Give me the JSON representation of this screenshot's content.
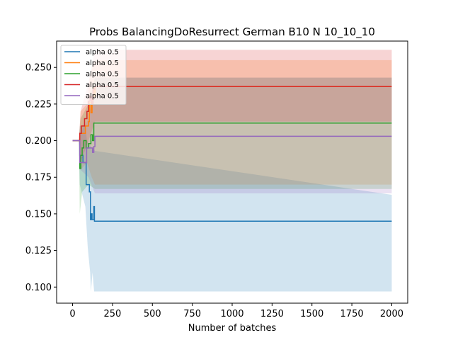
{
  "chart_data": {
    "type": "line",
    "title": "Probs BalancingDoResurrect German B10 N 10_10_10",
    "xlabel": "Number of batches",
    "ylabel": "",
    "xlim": [
      -100,
      2100
    ],
    "ylim": [
      0.089,
      0.268
    ],
    "xticks": [
      0,
      250,
      500,
      750,
      1000,
      1250,
      1500,
      1750,
      2000
    ],
    "yticks": [
      0.1,
      0.125,
      0.15,
      0.175,
      0.2,
      0.225,
      0.25
    ],
    "grid": false,
    "legend_position": "top-left",
    "series": [
      {
        "name": "alpha 0.5",
        "color": "#1f77b4",
        "points": [
          [
            0,
            0.2
          ],
          [
            40,
            0.2
          ],
          [
            45,
            0.19
          ],
          [
            60,
            0.19
          ],
          [
            65,
            0.185
          ],
          [
            80,
            0.185
          ],
          [
            85,
            0.17
          ],
          [
            100,
            0.17
          ],
          [
            105,
            0.165
          ],
          [
            112,
            0.146
          ],
          [
            118,
            0.15
          ],
          [
            122,
            0.146
          ],
          [
            128,
            0.146
          ],
          [
            133,
            0.155
          ],
          [
            137,
            0.145
          ],
          [
            2000,
            0.145
          ]
        ],
        "band_upper": [
          [
            0,
            0.2
          ],
          [
            40,
            0.2
          ],
          [
            45,
            0.21
          ],
          [
            80,
            0.21
          ],
          [
            90,
            0.2
          ],
          [
            120,
            0.195
          ],
          [
            140,
            0.193
          ],
          [
            2000,
            0.163
          ]
        ],
        "band_lower": [
          [
            0,
            0.2
          ],
          [
            40,
            0.2
          ],
          [
            45,
            0.17
          ],
          [
            80,
            0.155
          ],
          [
            95,
            0.127
          ],
          [
            110,
            0.11
          ],
          [
            115,
            0.097
          ],
          [
            125,
            0.11
          ],
          [
            135,
            0.097
          ],
          [
            2000,
            0.097
          ]
        ]
      },
      {
        "name": "alpha 0.5",
        "color": "#ff7f0e",
        "points": [
          [
            0,
            0.2
          ],
          [
            40,
            0.2
          ],
          [
            45,
            0.205
          ],
          [
            70,
            0.205
          ],
          [
            80,
            0.21
          ],
          [
            100,
            0.213
          ],
          [
            105,
            0.226
          ],
          [
            115,
            0.219
          ],
          [
            122,
            0.228
          ],
          [
            130,
            0.236
          ],
          [
            137,
            0.23
          ],
          [
            143,
            0.237
          ],
          [
            2000,
            0.237
          ]
        ],
        "band_upper": [
          [
            0,
            0.2
          ],
          [
            40,
            0.2
          ],
          [
            50,
            0.22
          ],
          [
            90,
            0.225
          ],
          [
            110,
            0.245
          ],
          [
            140,
            0.255
          ],
          [
            2000,
            0.255
          ]
        ],
        "band_lower": [
          [
            0,
            0.2
          ],
          [
            40,
            0.2
          ],
          [
            50,
            0.18
          ],
          [
            90,
            0.185
          ],
          [
            120,
            0.175
          ],
          [
            140,
            0.17
          ],
          [
            2000,
            0.17
          ]
        ]
      },
      {
        "name": "alpha 0.5",
        "color": "#2ca02c",
        "points": [
          [
            0,
            0.2
          ],
          [
            40,
            0.2
          ],
          [
            45,
            0.181
          ],
          [
            52,
            0.19
          ],
          [
            60,
            0.195
          ],
          [
            70,
            0.2
          ],
          [
            85,
            0.195
          ],
          [
            100,
            0.198
          ],
          [
            115,
            0.204
          ],
          [
            125,
            0.2
          ],
          [
            133,
            0.212
          ],
          [
            2000,
            0.212
          ]
        ],
        "band_upper": [
          [
            0,
            0.2
          ],
          [
            40,
            0.2
          ],
          [
            50,
            0.215
          ],
          [
            100,
            0.225
          ],
          [
            140,
            0.243
          ],
          [
            2000,
            0.243
          ]
        ],
        "band_lower": [
          [
            0,
            0.2
          ],
          [
            40,
            0.2
          ],
          [
            45,
            0.15
          ],
          [
            60,
            0.165
          ],
          [
            100,
            0.17
          ],
          [
            140,
            0.167
          ],
          [
            2000,
            0.167
          ]
        ]
      },
      {
        "name": "alpha 0.5",
        "color": "#d62728",
        "points": [
          [
            0,
            0.2
          ],
          [
            40,
            0.2
          ],
          [
            45,
            0.205
          ],
          [
            55,
            0.21
          ],
          [
            70,
            0.21
          ],
          [
            75,
            0.215
          ],
          [
            90,
            0.22
          ],
          [
            100,
            0.227
          ],
          [
            110,
            0.23
          ],
          [
            120,
            0.225
          ],
          [
            128,
            0.235
          ],
          [
            140,
            0.237
          ],
          [
            2000,
            0.237
          ]
        ],
        "band_upper": [
          [
            0,
            0.2
          ],
          [
            40,
            0.2
          ],
          [
            50,
            0.22
          ],
          [
            100,
            0.24
          ],
          [
            140,
            0.262
          ],
          [
            2000,
            0.262
          ]
        ],
        "band_lower": [
          [
            0,
            0.2
          ],
          [
            40,
            0.2
          ],
          [
            50,
            0.185
          ],
          [
            100,
            0.2
          ],
          [
            140,
            0.213
          ],
          [
            2000,
            0.213
          ]
        ]
      },
      {
        "name": "alpha 0.5",
        "color": "#9467bd",
        "points": [
          [
            0,
            0.2
          ],
          [
            40,
            0.2
          ],
          [
            45,
            0.185
          ],
          [
            80,
            0.185
          ],
          [
            88,
            0.195
          ],
          [
            120,
            0.195
          ],
          [
            125,
            0.192
          ],
          [
            133,
            0.196
          ],
          [
            140,
            0.203
          ],
          [
            2000,
            0.203
          ]
        ],
        "band_upper": [
          [
            0,
            0.2
          ],
          [
            40,
            0.2
          ],
          [
            50,
            0.205
          ],
          [
            100,
            0.215
          ],
          [
            140,
            0.243
          ],
          [
            2000,
            0.243
          ]
        ],
        "band_lower": [
          [
            0,
            0.2
          ],
          [
            40,
            0.2
          ],
          [
            50,
            0.18
          ],
          [
            100,
            0.175
          ],
          [
            140,
            0.164
          ],
          [
            2000,
            0.164
          ]
        ]
      }
    ]
  }
}
